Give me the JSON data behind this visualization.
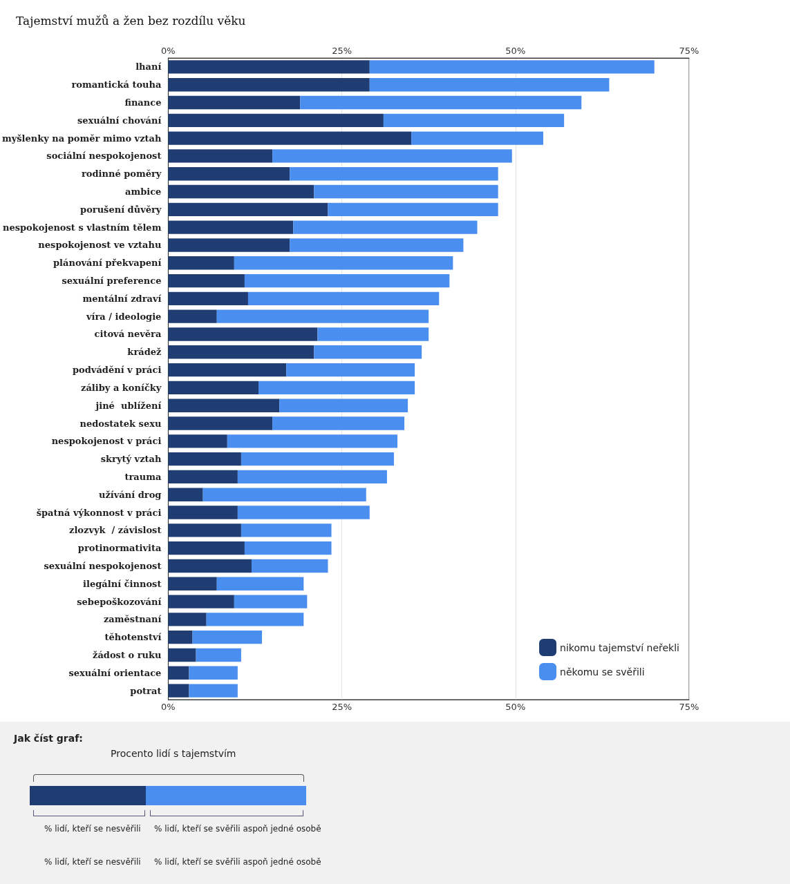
{
  "chart_data": {
    "type": "bar",
    "orientation": "horizontal",
    "stacked": true,
    "title": "Tajemství mužů a žen bez rozdílu věku",
    "categories": [
      "lhaní",
      "romantická touha",
      "finance",
      "sexuální chování",
      "myšlenky na poměr mimo vztah",
      "sociální nespokojenost",
      "rodinné poměry",
      "ambice",
      "porušení důvěry",
      "nespokojenost s vlastním tělem",
      "nespokojenost ve vztahu",
      "plánování překvapení",
      "sexuální preference",
      "mentální zdraví",
      "víra / ideologie",
      "citová nevěra",
      "krádež",
      "podvádění v práci",
      "záliby a koníčky",
      "jiné  ublížení",
      "nedostatek sexu",
      "nespokojenost v práci",
      "skrytý vztah",
      "trauma",
      "užívání drog",
      "špatná výkonnost v práci",
      "zlozvyk  / závislost",
      "protinormativita",
      "sexuální nespokojenost",
      "ilegální činnost",
      "sebepoškozování",
      "zaměstnaní",
      "těhotenství",
      "žádost o ruku",
      "sexuální orientace",
      "potrat"
    ],
    "series": [
      {
        "name": "nikomu tajemství neřekli",
        "color": "#1f3d73",
        "values": [
          29,
          29,
          19,
          31,
          35,
          15,
          17.5,
          21,
          23,
          18,
          17.5,
          9.5,
          11,
          11.5,
          7,
          21.5,
          21,
          17,
          13,
          16,
          15,
          8.5,
          10.5,
          10,
          5,
          10,
          10.5,
          11,
          12,
          7,
          9.5,
          5.5,
          3.5,
          4,
          3,
          3
        ]
      },
      {
        "name": "někomu se svěřili",
        "color": "#4a8ff0",
        "values": [
          41,
          34.5,
          40.5,
          26,
          19,
          34.5,
          30,
          26.5,
          24.5,
          26.5,
          25,
          31.5,
          29.5,
          27.5,
          30.5,
          16,
          15.5,
          18.5,
          22.5,
          18.5,
          19,
          24.5,
          22,
          21.5,
          23.5,
          19,
          13,
          12.5,
          11,
          12.5,
          10.5,
          14,
          10,
          6.5,
          7,
          7
        ]
      }
    ],
    "xlim": [
      0,
      75
    ],
    "xticks": [
      {
        "value": 0,
        "label": "0%"
      },
      {
        "value": 25,
        "label": "25%"
      },
      {
        "value": 50,
        "label": "50%"
      },
      {
        "value": 75,
        "label": "75%"
      }
    ],
    "x2lim": [
      0,
      75
    ],
    "x2ticks": [
      {
        "value": 0,
        "label": "0%"
      },
      {
        "value": 25,
        "label": "25%"
      },
      {
        "value": 50,
        "label": "50%"
      },
      {
        "value": 75,
        "label": "75%"
      }
    ],
    "grid": "x",
    "legend": "bottom right",
    "annotations": [
      "Jak číst graf:",
      "Procento lidí s tajemstvím",
      "% lidí, kteří se nesvěřili",
      "% lidí, kteří se svěřili aspoň jedné osobě",
      "% lidí, kteří se nesvěřili",
      "% lidí, kteří se svěřili aspoň jedné osobě"
    ]
  }
}
